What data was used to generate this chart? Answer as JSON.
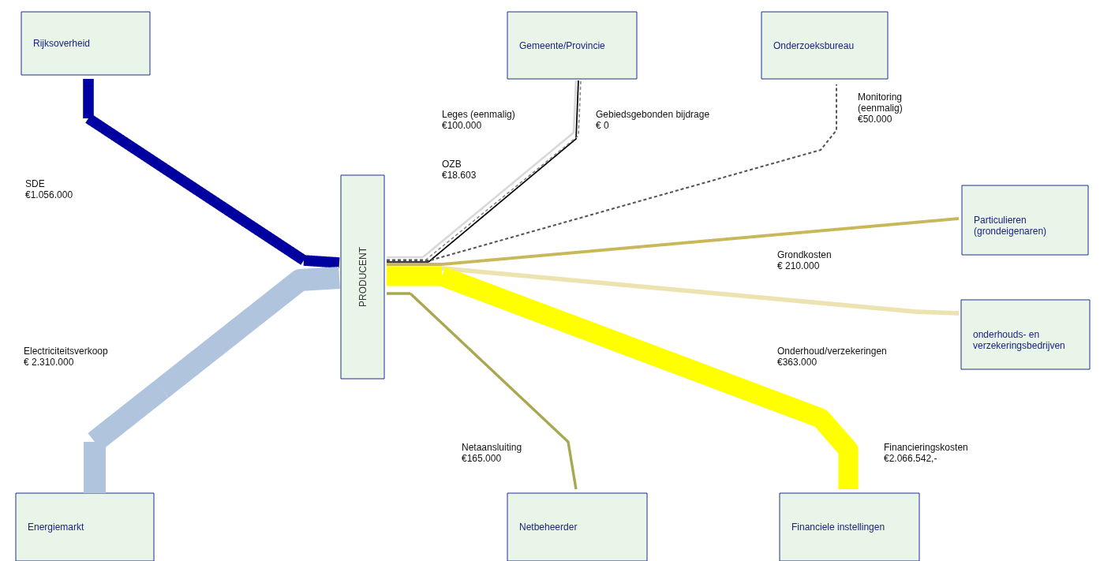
{
  "chart_data": {
    "type": "other",
    "categories": [
      "SDE",
      "Electriciteitsverkoop",
      "Leges (eenmalig)",
      "Gebiedsgebonden bijdrage",
      "OZB",
      "Monitoring (eenmalig)",
      "Grondkosten",
      "Onderhoud/verzekeringen",
      "Netaansluiting",
      "Financieringskosten"
    ],
    "values": [
      1056000,
      2310000,
      100000,
      0,
      18603,
      50000,
      210000,
      363000,
      165000,
      2066542
    ],
    "value_labels": [
      "€1.056.000",
      "€ 2.310.000",
      "€100.000",
      "€ 0",
      "€18.603",
      "€50.000",
      "€ 210.000",
      "€363.000",
      "€165.000",
      "€2.066.542,-"
    ],
    "colors": [
      "#0000a0",
      "#b0c4de",
      "#d9d9d9",
      "#808080",
      "#000000",
      "#555555",
      "#c8b85a",
      "#ece3b0",
      "#a8a850",
      "#ffff00"
    ],
    "annotations": [
      "Rijksoverheid",
      "Gemeente/Provincie",
      "Onderzoeksbureau",
      "Particulieren (grondeigenaren)",
      "onderhouds- en verzekeringsbedrijven",
      "Energiemarkt",
      "Netbeheerder",
      "Financiele instellingen",
      "PRODUCENT"
    ]
  }
}
